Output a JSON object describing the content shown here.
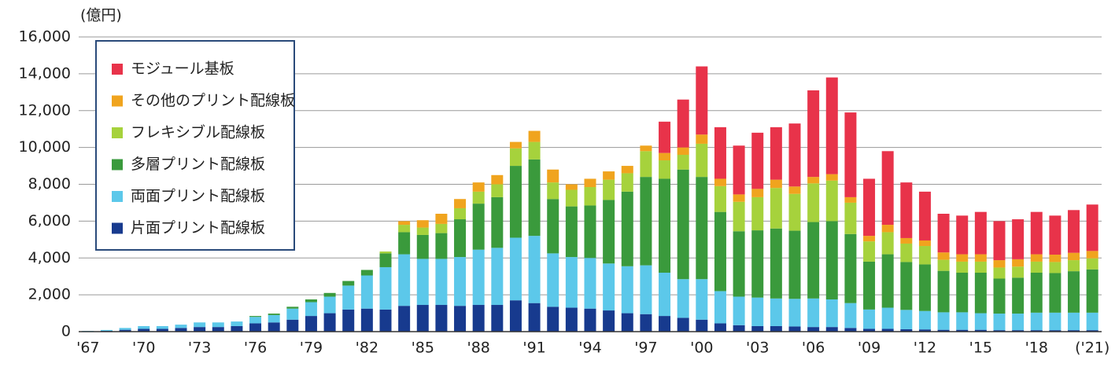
{
  "chart_data": {
    "type": "stacked-bar",
    "y_label": "(億円)",
    "categories": [
      "'67",
      null,
      null,
      "'70",
      null,
      null,
      "'73",
      null,
      null,
      "'76",
      null,
      null,
      "'79",
      null,
      null,
      "'82",
      null,
      null,
      "'85",
      null,
      null,
      "'88",
      null,
      null,
      "'91",
      null,
      null,
      "'94",
      null,
      null,
      "'97",
      null,
      null,
      "'00",
      null,
      null,
      "'03",
      null,
      null,
      "'06",
      null,
      null,
      "'09",
      null,
      null,
      "'12",
      null,
      null,
      "'15",
      null,
      null,
      "'18",
      null,
      null,
      "('21)"
    ],
    "series": [
      {
        "name": "モジュール基板",
        "color": "#e8334a",
        "values": [
          0,
          0,
          0,
          0,
          0,
          0,
          0,
          0,
          0,
          0,
          0,
          0,
          0,
          0,
          0,
          0,
          0,
          0,
          0,
          0,
          0,
          0,
          0,
          0,
          0,
          0,
          0,
          0,
          0,
          0,
          0,
          1700,
          2600,
          3700,
          2800,
          2650,
          3050,
          2850,
          3420,
          4700,
          5250,
          4600,
          3100,
          4000,
          3020,
          2650,
          2100,
          2100,
          2300,
          2120,
          2170,
          2300,
          2120,
          2320,
          2520
        ]
      },
      {
        "name": "その他のプリント配線板",
        "color": "#f0a41e",
        "values": [
          0,
          0,
          0,
          0,
          0,
          0,
          0,
          0,
          0,
          0,
          0,
          0,
          0,
          0,
          0,
          0,
          0,
          200,
          400,
          550,
          500,
          500,
          500,
          350,
          600,
          700,
          300,
          450,
          450,
          400,
          300,
          400,
          400,
          500,
          400,
          400,
          450,
          450,
          400,
          350,
          350,
          300,
          300,
          400,
          300,
          300,
          400,
          400,
          400,
          400,
          400,
          400,
          400,
          400,
          400
        ]
      },
      {
        "name": "フレキシブル配線板",
        "color": "#a6d23c",
        "values": [
          0,
          0,
          0,
          0,
          0,
          0,
          0,
          0,
          0,
          0,
          0,
          0,
          0,
          0,
          0,
          0,
          100,
          400,
          400,
          500,
          600,
          650,
          700,
          950,
          950,
          900,
          900,
          1000,
          1100,
          1000,
          1400,
          1000,
          800,
          1800,
          1400,
          1600,
          1800,
          2200,
          2000,
          2100,
          2200,
          1700,
          1100,
          1200,
          1000,
          1000,
          600,
          600,
          600,
          600,
          600,
          600,
          600,
          600,
          600
        ]
      },
      {
        "name": "多層プリント配線板",
        "color": "#3a9a3c",
        "values": [
          0,
          0,
          0,
          0,
          0,
          0,
          0,
          0,
          0,
          50,
          80,
          100,
          150,
          200,
          250,
          300,
          750,
          1200,
          1300,
          1400,
          2050,
          2500,
          2750,
          3900,
          4150,
          2950,
          2750,
          2850,
          3450,
          4050,
          4800,
          5100,
          5950,
          5550,
          4300,
          3550,
          3650,
          3800,
          3700,
          4150,
          4250,
          3750,
          2600,
          2900,
          2600,
          2530,
          2250,
          2150,
          2200,
          1900,
          1950,
          2170,
          2150,
          2250,
          2350
        ]
      },
      {
        "name": "両面プリント配線板",
        "color": "#5cc8ea",
        "values": [
          20,
          50,
          100,
          150,
          150,
          180,
          250,
          250,
          250,
          350,
          400,
          600,
          750,
          900,
          1300,
          1800,
          2300,
          2800,
          2500,
          2500,
          2650,
          3000,
          3100,
          3400,
          3650,
          2900,
          2750,
          2750,
          2550,
          2550,
          2650,
          2350,
          2100,
          2200,
          1750,
          1550,
          1550,
          1500,
          1500,
          1550,
          1500,
          1350,
          1050,
          1150,
          1050,
          1000,
          950,
          950,
          900,
          900,
          900,
          950,
          950,
          950,
          950
        ]
      },
      {
        "name": "片面プリント配線板",
        "color": "#173a8e",
        "values": [
          20,
          40,
          100,
          150,
          150,
          200,
          250,
          250,
          300,
          450,
          500,
          650,
          850,
          1000,
          1200,
          1250,
          1200,
          1400,
          1450,
          1450,
          1400,
          1450,
          1450,
          1700,
          1550,
          1350,
          1300,
          1250,
          1150,
          1000,
          950,
          850,
          750,
          650,
          450,
          350,
          300,
          300,
          280,
          250,
          250,
          200,
          150,
          150,
          130,
          120,
          100,
          100,
          100,
          80,
          80,
          80,
          80,
          80,
          80
        ]
      }
    ],
    "ylim": [
      0,
      16000
    ],
    "yticks": [
      0,
      {
        "value": 2000,
        "label": "2,000"
      },
      {
        "value": 4000,
        "label": "4,000"
      },
      {
        "value": 6000,
        "label": "6,000"
      },
      {
        "value": 8000,
        "label": "8,000"
      },
      {
        "value": 10000,
        "label": "10,000"
      },
      {
        "value": 12000,
        "label": "12,000"
      },
      {
        "value": 14000,
        "label": "14,000"
      },
      {
        "value": 16000,
        "label": "16,000"
      }
    ],
    "grid": true
  }
}
